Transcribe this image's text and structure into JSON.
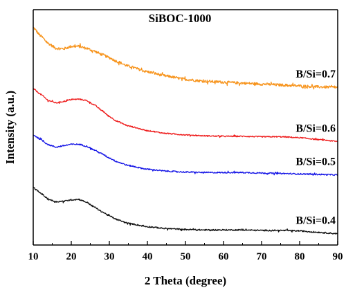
{
  "chart_data": {
    "type": "line",
    "title": "SiBOC-1000",
    "xlabel": "2 Theta (degree)",
    "ylabel": "Intensity (a.u.)",
    "xlim": [
      10,
      90
    ],
    "x_ticks": [
      "10",
      "20",
      "30",
      "40",
      "50",
      "60",
      "70",
      "80",
      "90"
    ],
    "y_ticks_shown": false,
    "grid": false,
    "series": [
      {
        "name": "B/Si=0.7",
        "color": "#f7941d",
        "noise": 0.028,
        "x": [
          10,
          12,
          14,
          16,
          18,
          20,
          22,
          24,
          26,
          28,
          30,
          32,
          35,
          40,
          45,
          50,
          55,
          60,
          65,
          70,
          75,
          80,
          85,
          90
        ],
        "y": [
          4.62,
          4.44,
          4.28,
          4.18,
          4.17,
          4.22,
          4.22,
          4.18,
          4.12,
          4.05,
          3.98,
          3.9,
          3.8,
          3.68,
          3.59,
          3.52,
          3.48,
          3.46,
          3.44,
          3.42,
          3.4,
          3.38,
          3.36,
          3.35
        ]
      },
      {
        "name": "B/Si=0.6",
        "color": "#ee1c1c",
        "noise": 0.012,
        "x": [
          10,
          12,
          14,
          16,
          18,
          20,
          22,
          24,
          26,
          28,
          30,
          32,
          35,
          40,
          45,
          50,
          55,
          60,
          65,
          70,
          75,
          80,
          85,
          90
        ],
        "y": [
          3.32,
          3.2,
          3.07,
          3.02,
          3.05,
          3.09,
          3.1,
          3.07,
          2.98,
          2.86,
          2.73,
          2.63,
          2.53,
          2.43,
          2.37,
          2.34,
          2.32,
          2.31,
          2.31,
          2.3,
          2.3,
          2.28,
          2.24,
          2.2
        ]
      },
      {
        "name": "B/Si=0.5",
        "color": "#1414e6",
        "noise": 0.014,
        "x": [
          10,
          12,
          14,
          16,
          18,
          20,
          22,
          24,
          26,
          28,
          30,
          32,
          35,
          40,
          45,
          50,
          55,
          60,
          65,
          70,
          75,
          80,
          85,
          90
        ],
        "y": [
          2.34,
          2.24,
          2.13,
          2.08,
          2.11,
          2.14,
          2.14,
          2.1,
          2.02,
          1.94,
          1.85,
          1.77,
          1.69,
          1.61,
          1.57,
          1.55,
          1.54,
          1.54,
          1.54,
          1.53,
          1.52,
          1.51,
          1.5,
          1.49
        ]
      },
      {
        "name": "B/Si=0.4",
        "color": "#111111",
        "noise": 0.014,
        "x": [
          10,
          12,
          14,
          16,
          18,
          20,
          22,
          24,
          26,
          28,
          30,
          32,
          35,
          40,
          45,
          50,
          55,
          60,
          65,
          70,
          75,
          80,
          85,
          90
        ],
        "y": [
          1.22,
          1.1,
          0.97,
          0.92,
          0.93,
          0.96,
          0.97,
          0.91,
          0.81,
          0.71,
          0.62,
          0.54,
          0.46,
          0.39,
          0.35,
          0.33,
          0.32,
          0.32,
          0.32,
          0.31,
          0.31,
          0.3,
          0.27,
          0.24
        ]
      }
    ]
  }
}
